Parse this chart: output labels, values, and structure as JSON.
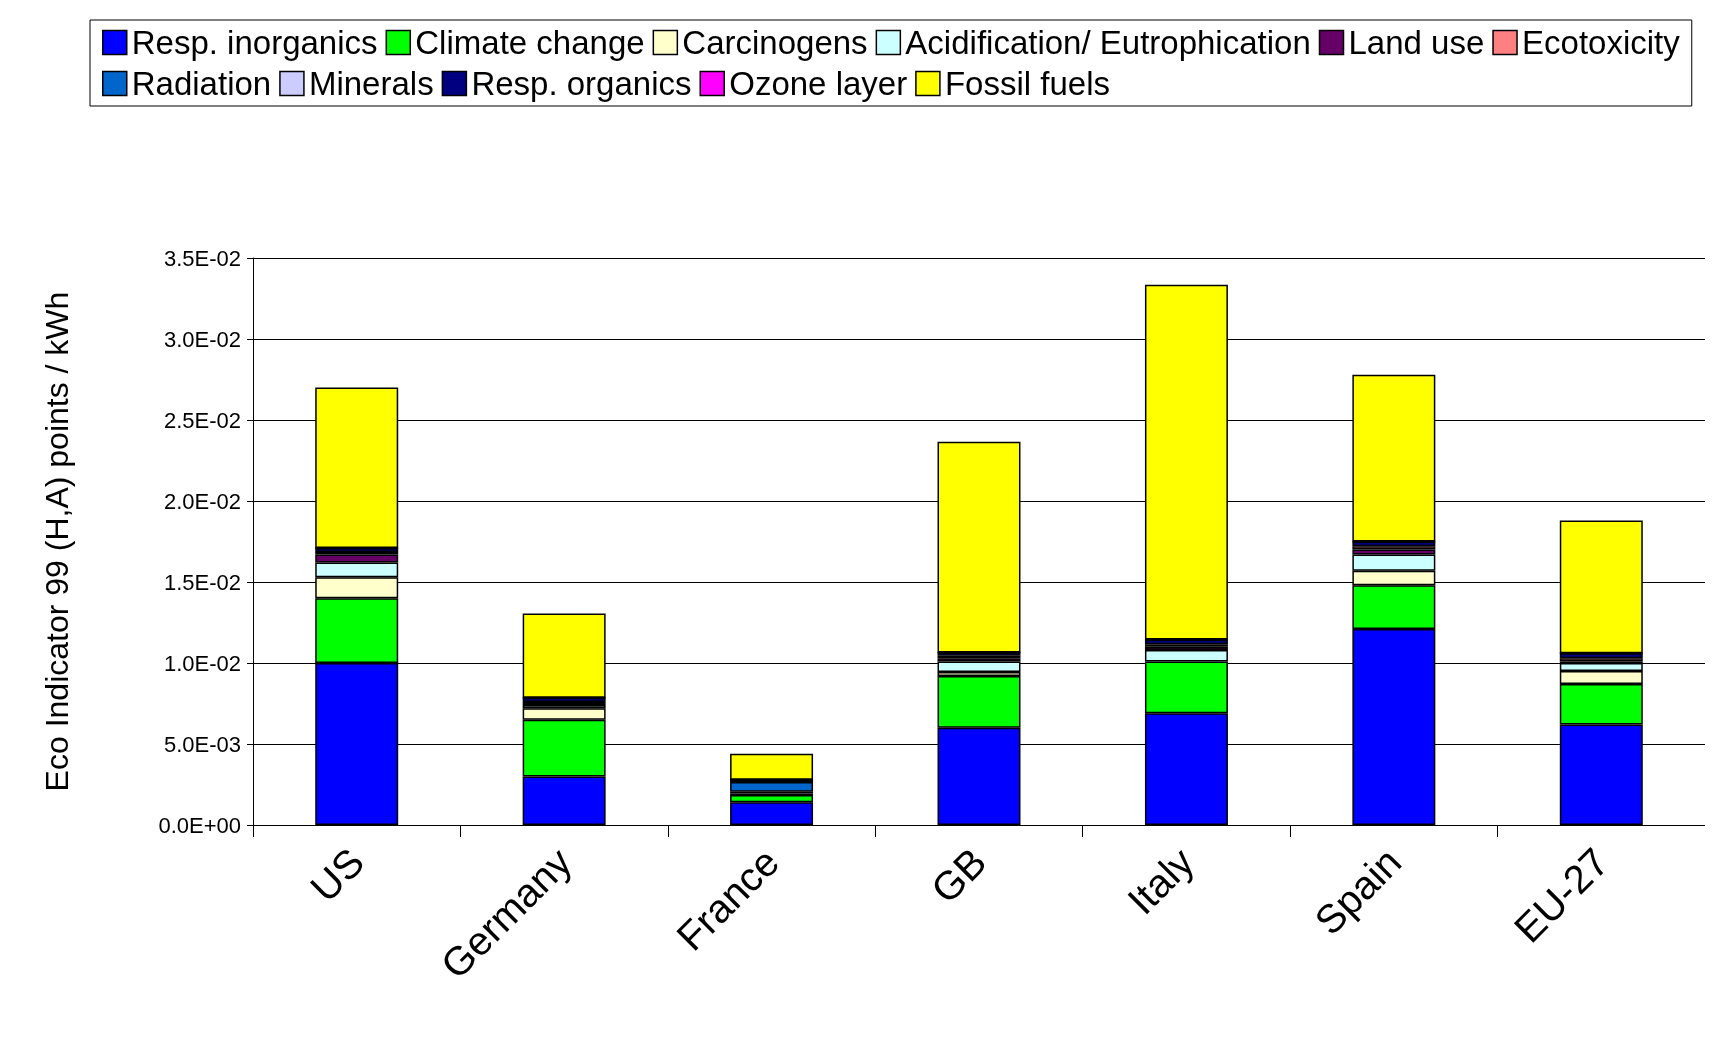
{
  "chart_data": {
    "type": "bar",
    "stacked": true,
    "ylabel": "Eco Indicator 99 (H,A) points / kWh",
    "categories": [
      "US",
      "Germany",
      "France",
      "GB",
      "Italy",
      "Spain",
      "EU-27"
    ],
    "ylim": [
      0,
      0.035
    ],
    "yticks": [
      {
        "value": 0,
        "label": "0.0E+00"
      },
      {
        "value": 0.005,
        "label": "5.0E-03"
      },
      {
        "value": 0.01,
        "label": "1.0E-02"
      },
      {
        "value": 0.015,
        "label": "1.5E-02"
      },
      {
        "value": 0.02,
        "label": "2.0E-02"
      },
      {
        "value": 0.025,
        "label": "2.5E-02"
      },
      {
        "value": 0.03,
        "label": "3.0E-02"
      },
      {
        "value": 0.035,
        "label": "3.5E-02"
      }
    ],
    "grid": "y",
    "legend": "top",
    "series": [
      {
        "name": "Resp. inorganics",
        "color": "#0000ff",
        "values": [
          0.01,
          0.003,
          0.0014,
          0.006,
          0.0069,
          0.0121,
          0.0062
        ]
      },
      {
        "name": "Climate change",
        "color": "#00ff00",
        "values": [
          0.004,
          0.0035,
          0.00045,
          0.0032,
          0.0032,
          0.0027,
          0.0025
        ]
      },
      {
        "name": "Carcinogens",
        "color": "#ffffcc",
        "values": [
          0.0013,
          0.0007,
          0.0001,
          0.00025,
          null,
          0.0009,
          0.0008
        ]
      },
      {
        "name": "Acidification/ Eutrophication",
        "color": "#ccffff",
        "values": [
          0.0009,
          0.0002,
          null,
          0.00065,
          0.0007,
          0.001,
          0.0005
        ]
      },
      {
        "name": "Land use",
        "color": "#660066",
        "values": [
          0.0005,
          0.0002,
          0.0001,
          0.0002,
          0.0002,
          0.0003,
          0.0001
        ]
      },
      {
        "name": "Ecotoxicity",
        "color": "#ff8080",
        "values": [
          0.00015,
          null,
          null,
          0.00015,
          0.00015,
          0.0002,
          0.0002
        ]
      },
      {
        "name": "Radiation",
        "color": "#0066cc",
        "values": [
          null,
          null,
          0.0006,
          null,
          null,
          null,
          null
        ]
      },
      {
        "name": "Minerals",
        "color": "#ccccff",
        "values": [
          null,
          null,
          null,
          null,
          null,
          null,
          null
        ]
      },
      {
        "name": "Resp. organics",
        "color": "#000080",
        "values": [
          0.00025,
          0.00025,
          0.00015,
          0.0002,
          0.0003,
          0.0003,
          0.0003
        ]
      },
      {
        "name": "Ozone layer",
        "color": "#ff00ff",
        "values": [
          0,
          0,
          0,
          0,
          0,
          0,
          0
        ]
      },
      {
        "name": "Fossil fuels",
        "color": "#ffff00",
        "values": [
          0.0099,
          0.0052,
          0.0016,
          0.013,
          0.0219,
          0.0103,
          0.0082
        ]
      }
    ]
  }
}
